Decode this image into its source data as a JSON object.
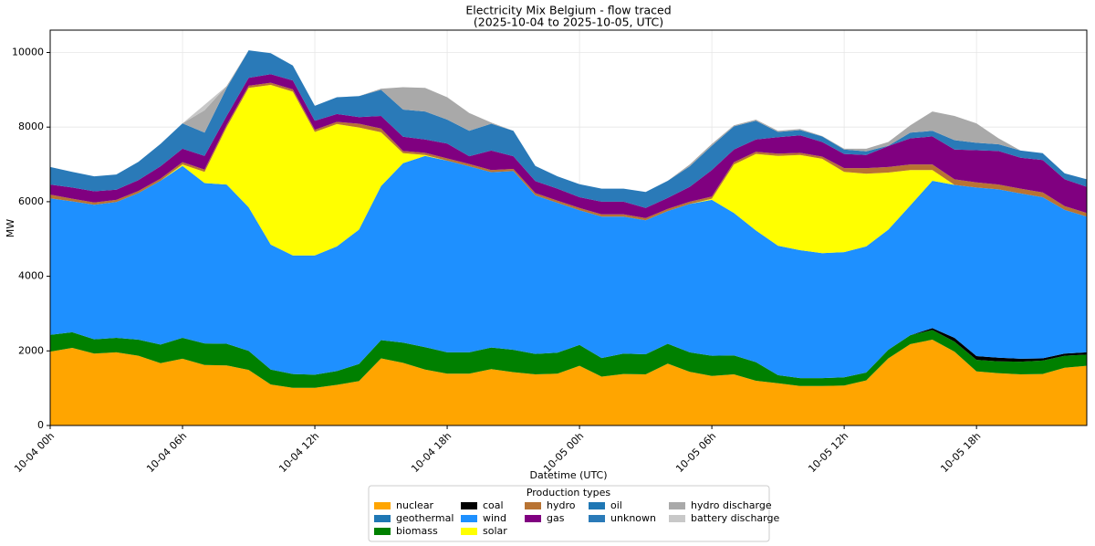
{
  "chart_data": {
    "type": "stacked_area",
    "title": "Electricity Mix Belgium - flow traced",
    "subtitle": "(2025-10-04 to 2025-10-05, UTC)",
    "x_label": "Datetime (UTC)",
    "y_label": "MW",
    "categories": [
      "10-04 00h",
      null,
      null,
      null,
      null,
      null,
      "10-04 06h",
      null,
      null,
      null,
      null,
      null,
      "10-04 12h",
      null,
      null,
      null,
      null,
      null,
      "10-04 18h",
      null,
      null,
      null,
      null,
      null,
      "10-05 00h",
      null,
      null,
      null,
      null,
      null,
      "10-05 06h",
      null,
      null,
      null,
      null,
      null,
      "10-05 12h",
      null,
      null,
      null,
      null,
      null,
      "10-05 18h",
      null,
      null,
      null,
      null,
      null
    ],
    "ylim": [
      0,
      10600
    ],
    "yticks": [
      0,
      2000,
      4000,
      6000,
      8000,
      10000
    ],
    "grid": true,
    "legend": {
      "title": "Production types",
      "position": "bottom",
      "columns": 5
    },
    "series": [
      {
        "name": "nuclear",
        "color": "#ffa500",
        "values": [
          1980,
          2080,
          1930,
          1960,
          1870,
          1670,
          1790,
          1620,
          1610,
          1490,
          1100,
          1010,
          1010,
          1090,
          1190,
          1800,
          1680,
          1500,
          1390,
          1390,
          1510,
          1430,
          1370,
          1390,
          1600,
          1310,
          1380,
          1370,
          1660,
          1440,
          1330,
          1370,
          1200,
          1130,
          1060,
          1060,
          1070,
          1210,
          1800,
          2180,
          2300,
          1980,
          1450,
          1400,
          1370,
          1380,
          1550,
          1600
        ]
      },
      {
        "name": "geothermal",
        "color": "#1f77b4",
        "values": [
          0,
          0,
          0,
          0,
          0,
          0,
          0,
          0,
          0,
          0,
          0,
          0,
          0,
          0,
          0,
          0,
          0,
          0,
          0,
          0,
          0,
          0,
          0,
          0,
          0,
          0,
          0,
          0,
          0,
          0,
          0,
          0,
          0,
          0,
          0,
          0,
          0,
          0,
          0,
          0,
          0,
          0,
          0,
          0,
          0,
          0,
          0,
          0
        ]
      },
      {
        "name": "biomass",
        "color": "#008000",
        "values": [
          450,
          420,
          380,
          390,
          430,
          500,
          560,
          580,
          580,
          510,
          400,
          370,
          350,
          370,
          460,
          490,
          540,
          600,
          570,
          570,
          580,
          600,
          550,
          560,
          560,
          500,
          550,
          540,
          530,
          520,
          540,
          510,
          500,
          220,
          210,
          210,
          220,
          210,
          230,
          240,
          260,
          270,
          310,
          320,
          340,
          360,
          320,
          300
        ]
      },
      {
        "name": "coal",
        "color": "#000000",
        "values": [
          0,
          0,
          0,
          0,
          0,
          0,
          0,
          0,
          0,
          0,
          0,
          0,
          0,
          0,
          0,
          0,
          0,
          0,
          0,
          0,
          0,
          0,
          0,
          0,
          0,
          0,
          0,
          0,
          0,
          0,
          0,
          0,
          0,
          0,
          0,
          0,
          0,
          0,
          0,
          0,
          50,
          100,
          100,
          100,
          80,
          60,
          60,
          60
        ]
      },
      {
        "name": "wind",
        "color": "#1e90ff",
        "values": [
          3660,
          3510,
          3610,
          3640,
          3930,
          4390,
          4610,
          4300,
          4270,
          3850,
          3350,
          3180,
          3200,
          3340,
          3600,
          4130,
          4810,
          5130,
          5140,
          4990,
          4700,
          4790,
          4250,
          4020,
          3610,
          3790,
          3670,
          3590,
          3560,
          3980,
          4180,
          3820,
          3530,
          3470,
          3430,
          3350,
          3360,
          3380,
          3220,
          3480,
          3950,
          4100,
          4520,
          4510,
          4430,
          4320,
          3850,
          3640
        ]
      },
      {
        "name": "solar",
        "color": "#ffff00",
        "values": [
          0,
          0,
          0,
          0,
          0,
          0,
          40,
          300,
          1540,
          3200,
          4280,
          4390,
          3310,
          3280,
          2740,
          1440,
          270,
          20,
          0,
          0,
          0,
          0,
          0,
          0,
          0,
          0,
          0,
          0,
          0,
          0,
          30,
          1300,
          2050,
          2410,
          2550,
          2530,
          2150,
          1950,
          1530,
          950,
          290,
          0,
          0,
          0,
          0,
          0,
          0,
          0
        ]
      },
      {
        "name": "hydro",
        "color": "#b87333",
        "values": [
          100,
          70,
          60,
          60,
          60,
          60,
          60,
          60,
          60,
          60,
          60,
          60,
          60,
          60,
          100,
          100,
          60,
          60,
          60,
          60,
          60,
          60,
          60,
          60,
          60,
          60,
          60,
          60,
          60,
          60,
          60,
          60,
          60,
          60,
          60,
          60,
          100,
          150,
          150,
          150,
          150,
          150,
          140,
          130,
          130,
          130,
          100,
          100
        ]
      },
      {
        "name": "gas",
        "color": "#800080",
        "values": [
          270,
          300,
          300,
          270,
          290,
          330,
          360,
          370,
          240,
          210,
          230,
          240,
          240,
          210,
          180,
          340,
          380,
          360,
          400,
          210,
          520,
          340,
          320,
          320,
          290,
          340,
          340,
          270,
          290,
          400,
          710,
          340,
          330,
          440,
          470,
          390,
          380,
          350,
          560,
          700,
          750,
          800,
          860,
          900,
          830,
          870,
          720,
          700
        ]
      },
      {
        "name": "oil",
        "color": "#1f77b4",
        "values": [
          0,
          0,
          0,
          0,
          0,
          0,
          0,
          0,
          0,
          0,
          0,
          0,
          0,
          0,
          0,
          0,
          0,
          0,
          0,
          0,
          0,
          0,
          0,
          0,
          0,
          0,
          0,
          0,
          0,
          0,
          0,
          0,
          0,
          0,
          0,
          0,
          0,
          0,
          0,
          0,
          0,
          0,
          0,
          0,
          0,
          0,
          0,
          0
        ]
      },
      {
        "name": "unknown",
        "color": "#2a7ab8",
        "values": [
          470,
          420,
          400,
          410,
          490,
          600,
          680,
          620,
          750,
          740,
          560,
          400,
          400,
          450,
          560,
          700,
          730,
          750,
          640,
          680,
          720,
          680,
          410,
          330,
          350,
          350,
          350,
          430,
          460,
          550,
          650,
          620,
          500,
          140,
          140,
          150,
          120,
          100,
          10,
          150,
          150,
          250,
          200,
          180,
          190,
          180,
          160,
          200
        ]
      },
      {
        "name": "hydro discharge",
        "color": "#a9a9a9",
        "values": [
          0,
          0,
          0,
          0,
          0,
          0,
          0,
          600,
          50,
          0,
          0,
          0,
          0,
          0,
          0,
          30,
          600,
          630,
          600,
          480,
          30,
          0,
          0,
          0,
          0,
          0,
          0,
          0,
          0,
          50,
          50,
          30,
          30,
          30,
          30,
          10,
          20,
          70,
          100,
          200,
          520,
          650,
          520,
          160,
          0,
          0,
          0,
          0
        ]
      },
      {
        "name": "battery discharge",
        "color": "#c8c8c8",
        "values": [
          0,
          0,
          0,
          0,
          0,
          0,
          0,
          150,
          0,
          0,
          0,
          0,
          0,
          0,
          0,
          0,
          0,
          0,
          0,
          0,
          0,
          0,
          0,
          0,
          0,
          0,
          0,
          0,
          0,
          0,
          0,
          0,
          0,
          0,
          0,
          0,
          0,
          0,
          0,
          0,
          0,
          0,
          0,
          0,
          0,
          0,
          0,
          0
        ]
      }
    ]
  }
}
